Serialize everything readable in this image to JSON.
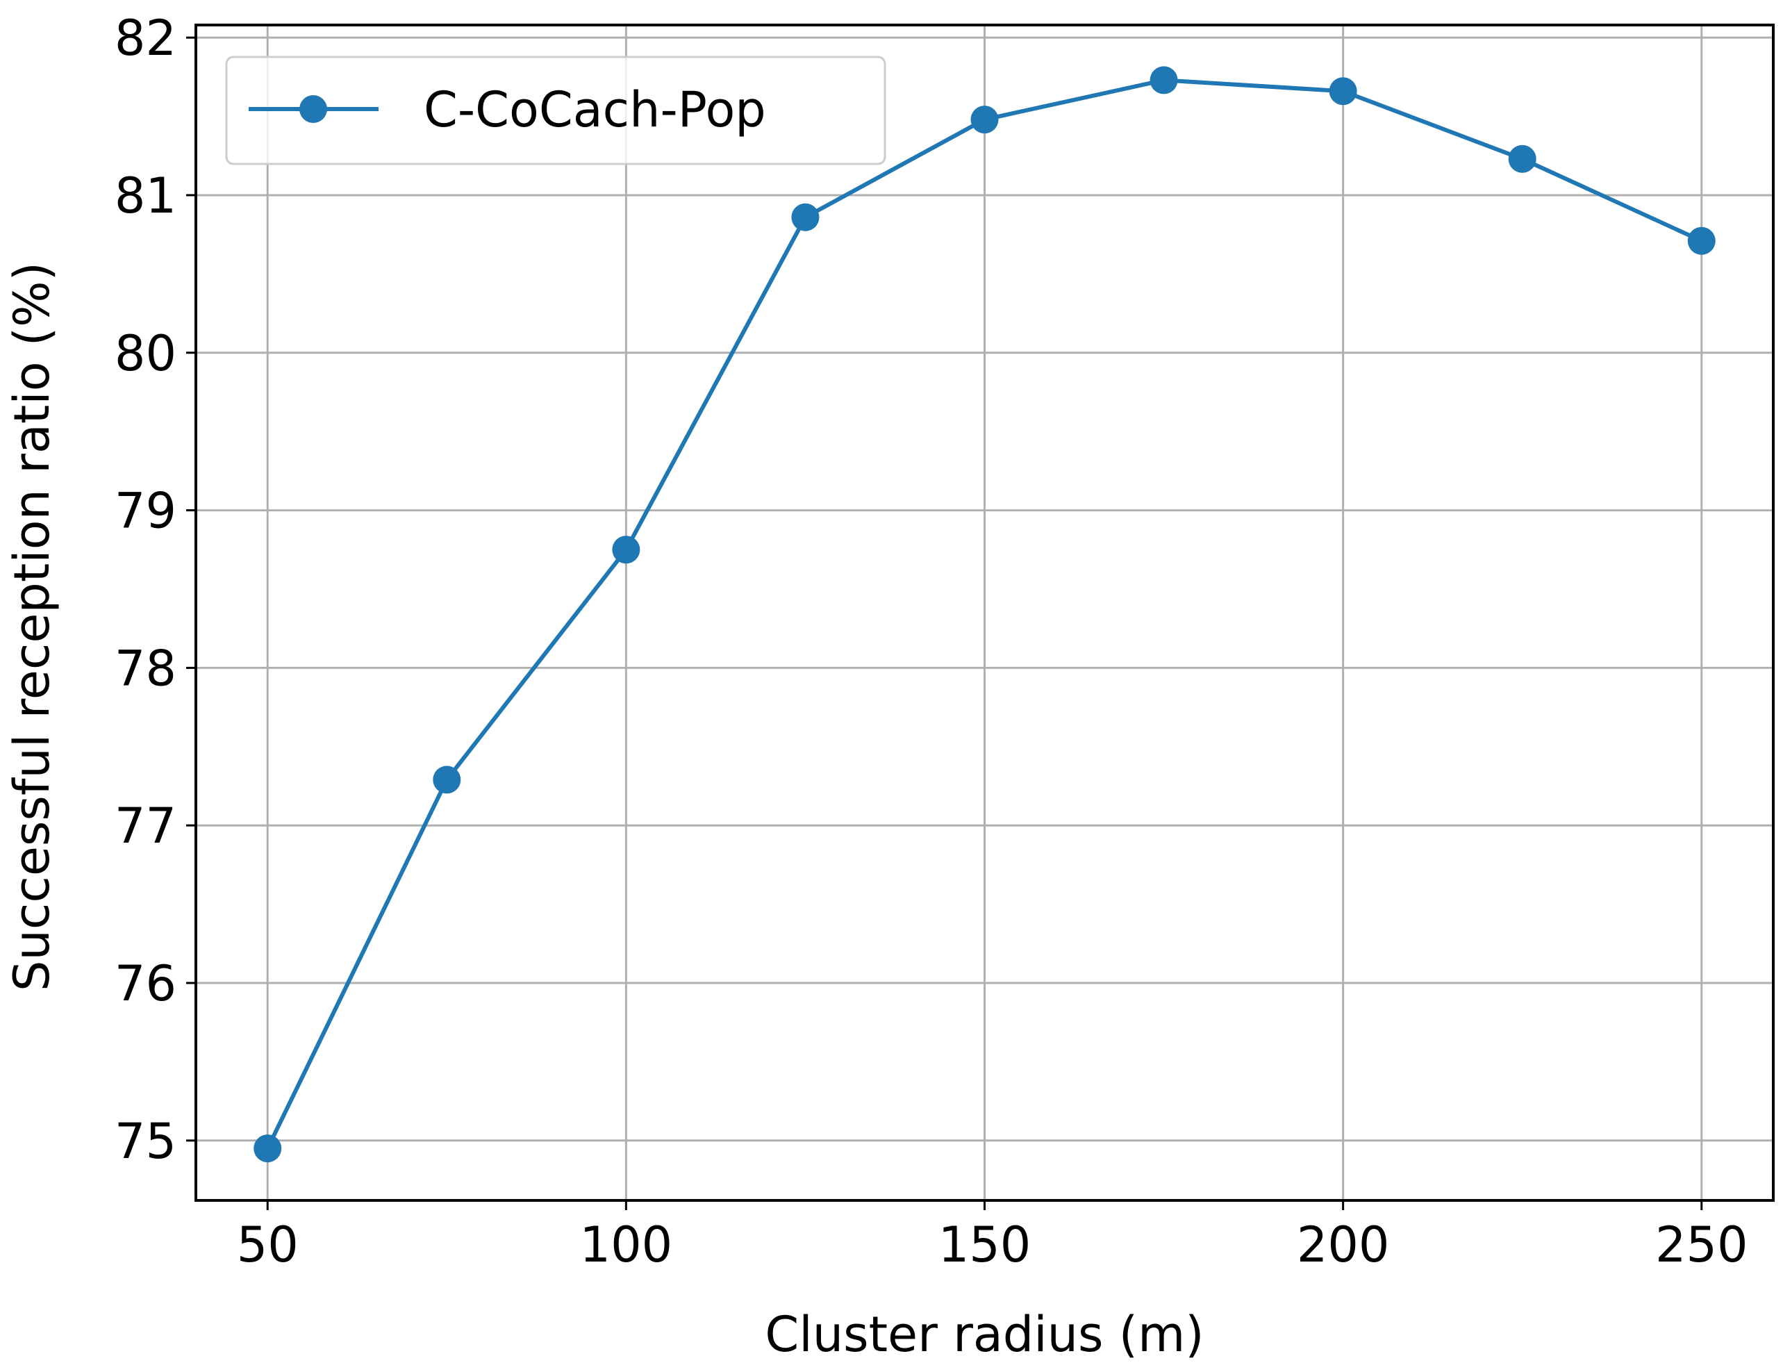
{
  "chart_data": {
    "type": "line",
    "title": "",
    "xlabel": "Cluster radius (m)",
    "ylabel": "Successful reception ratio (%)",
    "xlim": [
      40,
      260
    ],
    "ylim": [
      74.62,
      82.08
    ],
    "x_ticks": [
      50,
      100,
      150,
      200,
      250
    ],
    "y_ticks": [
      75,
      76,
      77,
      78,
      79,
      80,
      81,
      82
    ],
    "grid": true,
    "legend_position": "top-left",
    "series": [
      {
        "name": "C-CoCach-Pop",
        "color": "#1f77b4",
        "marker": "circle",
        "x": [
          50,
          75,
          100,
          125,
          150,
          175,
          200,
          225,
          250
        ],
        "y": [
          74.95,
          77.29,
          78.75,
          80.86,
          81.48,
          81.73,
          81.66,
          81.23,
          80.71
        ]
      }
    ]
  }
}
